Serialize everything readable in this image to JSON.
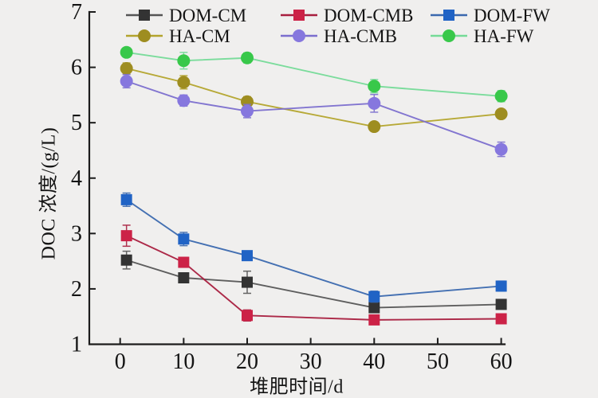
{
  "figure": {
    "background": "#f0efee",
    "axis_color": "#1c1c1c",
    "text_color": "#141414"
  },
  "chart_data": {
    "type": "line",
    "title": "",
    "xlabel": "堆肥时间/d",
    "ylabel": "DOC 浓度/(g/L)",
    "x": [
      1,
      10,
      20,
      40,
      60
    ],
    "xticks": [
      0,
      10,
      20,
      30,
      40,
      50,
      60
    ],
    "yticks": [
      1,
      2,
      3,
      4,
      5,
      6,
      7
    ],
    "xlim": [
      0,
      60
    ],
    "ylim": [
      1,
      7
    ],
    "grid": false,
    "error_bars": true,
    "legend_position": "top",
    "legend_columns": 3,
    "series": [
      {
        "name": "DOM-CM",
        "marker": "square",
        "color": "#333333",
        "line_color": "#555555",
        "values": [
          2.52,
          2.2,
          2.12,
          1.66,
          1.72
        ],
        "errors": [
          0.16,
          0.07,
          0.2,
          0.07,
          0.06
        ]
      },
      {
        "name": "DOM-CMB",
        "marker": "square",
        "color": "#cc2247",
        "line_color": "#a81e3e",
        "values": [
          2.96,
          2.48,
          1.52,
          1.44,
          1.46
        ],
        "errors": [
          0.19,
          0.09,
          0.1,
          0.06,
          0.05
        ]
      },
      {
        "name": "DOM-FW",
        "marker": "square",
        "color": "#2063c5",
        "line_color": "#3a68ae",
        "values": [
          3.61,
          2.9,
          2.6,
          1.86,
          2.05
        ],
        "errors": [
          0.12,
          0.12,
          0.08,
          0.1,
          0.09
        ]
      },
      {
        "name": "HA-CM",
        "marker": "circle",
        "color": "#9e8d20",
        "line_color": "#b3a42c",
        "values": [
          5.98,
          5.73,
          5.38,
          4.93,
          5.16
        ],
        "errors": [
          0.1,
          0.12,
          0.09,
          0.08,
          0.08
        ]
      },
      {
        "name": "HA-CMB",
        "marker": "circle",
        "color": "#8677de",
        "line_color": "#7b6ece",
        "values": [
          5.75,
          5.4,
          5.21,
          5.35,
          4.52
        ],
        "errors": [
          0.12,
          0.1,
          0.12,
          0.16,
          0.13
        ]
      },
      {
        "name": "HA-FW",
        "marker": "circle",
        "color": "#38c84a",
        "line_color": "#74da97",
        "values": [
          6.27,
          6.12,
          6.17,
          5.66,
          5.48
        ],
        "errors": [
          0.08,
          0.15,
          0.09,
          0.12,
          0.1
        ]
      }
    ]
  }
}
